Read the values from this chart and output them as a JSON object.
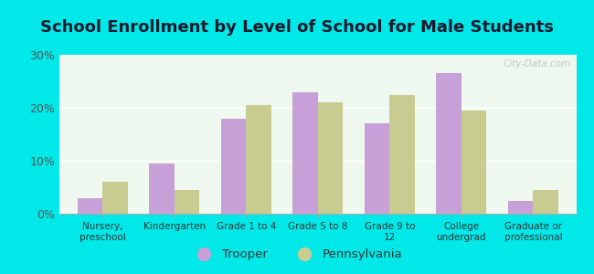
{
  "title": "School Enrollment by Level of School for Male Students",
  "categories": [
    "Nursery,\npreschool",
    "Kindergarten",
    "Grade 1 to 4",
    "Grade 5 to 8",
    "Grade 9 to\n12",
    "College\nundergrad",
    "Graduate or\nprofessional"
  ],
  "trooper": [
    3.0,
    9.5,
    18.0,
    23.0,
    17.0,
    26.5,
    2.5
  ],
  "pennsylvania": [
    6.0,
    4.5,
    20.5,
    21.0,
    22.5,
    19.5,
    4.5
  ],
  "trooper_color": "#c8a0d8",
  "pennsylvania_color": "#c8cc90",
  "bg_color": "#00e8e8",
  "plot_bg": "#eef8ee",
  "ylim": [
    0,
    30
  ],
  "yticks": [
    0,
    10,
    20,
    30
  ],
  "yticklabels": [
    "0%",
    "10%",
    "20%",
    "30%"
  ],
  "bar_width": 0.35,
  "title_fontsize": 13,
  "legend_labels": [
    "Trooper",
    "Pennsylvania"
  ],
  "watermark": "City-Data.com"
}
